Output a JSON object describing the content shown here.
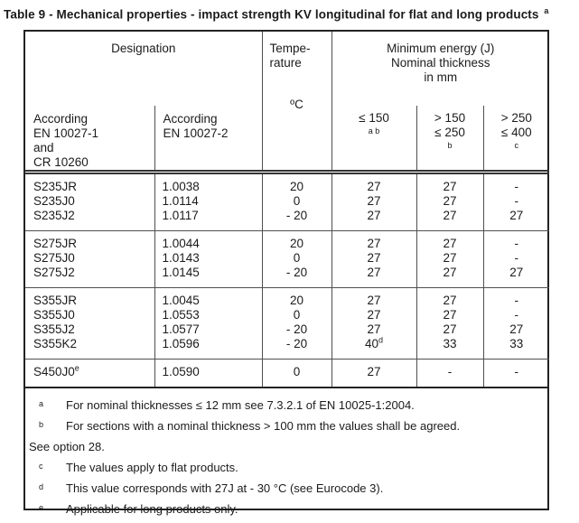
{
  "colors": {
    "text": "#1b1b1b",
    "outer_border": "#222222",
    "grid_lines": "#4f4f4f",
    "background": "#ffffff"
  },
  "title": {
    "text": "Table 9 - Mechanical properties - impact strength KV longitudinal for flat and long products",
    "sup": "a"
  },
  "header": {
    "designation": "Designation",
    "temperature": "Tempe-\nrature",
    "temperature_unit": "ºC",
    "energy": "Minimum energy (J)\nNominal thickness\nin mm",
    "according_1": "According\nEN 10027-1\nand\nCR 10260",
    "according_2": "According\nEN 10027-2",
    "thickness": [
      {
        "lines": "≤ 150",
        "sup": "a b"
      },
      {
        "lines": "> 150\n≤ 250",
        "sup": "b"
      },
      {
        "lines": "> 250\n≤ 400",
        "sup": "c"
      }
    ]
  },
  "groups": [
    {
      "rows": [
        [
          "S235JR",
          "1.0038",
          "20",
          "27",
          "27",
          "-"
        ],
        [
          "S235J0",
          "1.0114",
          "0",
          "27",
          "27",
          "-"
        ],
        [
          "S235J2",
          "1.0117",
          "- 20",
          "27",
          "27",
          "27"
        ]
      ]
    },
    {
      "rows": [
        [
          "S275JR",
          "1.0044",
          "20",
          "27",
          "27",
          "-"
        ],
        [
          "S275J0",
          "1.0143",
          "0",
          "27",
          "27",
          "-"
        ],
        [
          "S275J2",
          "1.0145",
          "- 20",
          "27",
          "27",
          "27"
        ]
      ]
    },
    {
      "rows": [
        [
          "S355JR",
          "1.0045",
          "20",
          "27",
          "27",
          "-"
        ],
        [
          "S355J0",
          "1.0553",
          "0",
          "27",
          "27",
          "-"
        ],
        [
          "S355J2",
          "1.0577",
          "- 20",
          "27",
          "27",
          "27"
        ],
        [
          "S355K2",
          "1.0596",
          "- 20",
          {
            "t": "40",
            "s": "d"
          },
          "33",
          "33"
        ]
      ]
    },
    {
      "rows": [
        [
          {
            "t": "S450J0",
            "s": "e"
          },
          "1.0590",
          "0",
          "27",
          "-",
          "-"
        ]
      ]
    }
  ],
  "footnotes": [
    {
      "marker": "a",
      "text": "For nominal thicknesses ≤ 12 mm see 7.3.2.1 of EN 10025-1:2004."
    },
    {
      "marker": "b",
      "text": "For sections with a nominal thickness > 100 mm the values shall be agreed."
    },
    {
      "marker": "",
      "text": "See option 28."
    },
    {
      "marker": "c",
      "text": "The values apply to flat products."
    },
    {
      "marker": "d",
      "text": "This value corresponds with 27J at - 30 °C (see Eurocode 3)."
    },
    {
      "marker": "e",
      "text": "Applicable for long products only."
    }
  ]
}
